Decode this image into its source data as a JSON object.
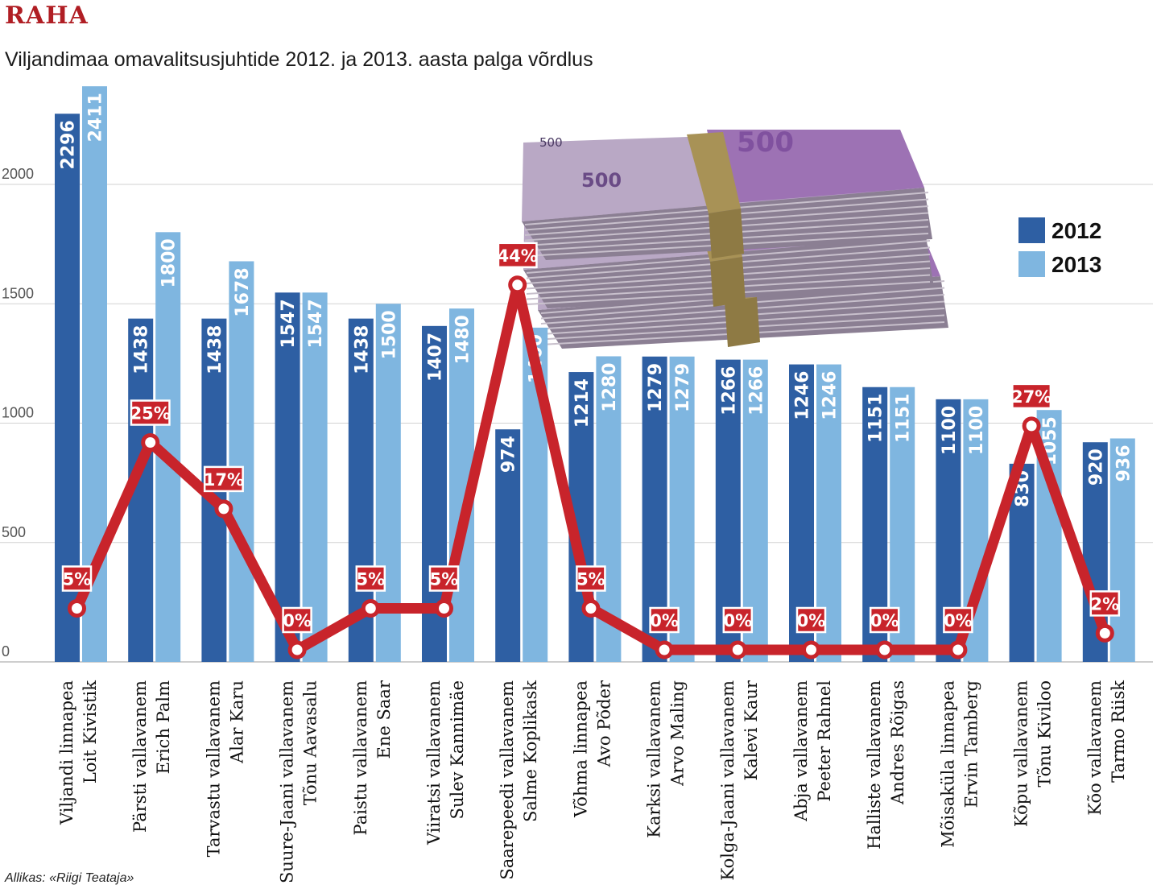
{
  "section_label": "RAHA",
  "title": "Viljandimaa omavalitsusjuhtide 2012. ja 2013. aasta palga võrdlus",
  "source": "Allikas: «Riigi Teataja»",
  "chart_data": {
    "type": "bar",
    "categories": [
      [
        "Viljandi linnapea",
        "Loit Kivistik"
      ],
      [
        "Pärsti vallavanem",
        "Erich Palm"
      ],
      [
        "Tarvastu vallavanem",
        "Alar Karu"
      ],
      [
        "Suure-Jaani vallavanem",
        "Tõnu Aavasalu"
      ],
      [
        "Paistu vallavanem",
        "Ene Saar"
      ],
      [
        "Viiratsi vallavanem",
        "Sulev Kannimäe"
      ],
      [
        "Saarepeedi vallavanem",
        "Salme Koplikask"
      ],
      [
        "Võhma linnapea",
        "Avo Põder"
      ],
      [
        "Karksi vallavanem",
        "Arvo Maling"
      ],
      [
        "Kolga-Jaani vallavanem",
        "Kalevi Kaur"
      ],
      [
        "Abja vallavanem",
        "Peeter Rahnel"
      ],
      [
        "Halliste vallavanem",
        "Andres Rõigas"
      ],
      [
        "Mõisaküla linnapea",
        "Ervin Tamberg"
      ],
      [
        "Kõpu vallavanem",
        "Tõnu Kiviloo"
      ],
      [
        "Kõo vallavanem",
        "Tarmo Riisk"
      ]
    ],
    "series": [
      {
        "name": "2012",
        "color": "#2e5fa3",
        "values": [
          2296,
          1438,
          1438,
          1547,
          1438,
          1407,
          974,
          1214,
          1279,
          1266,
          1246,
          1151,
          1100,
          830,
          920
        ]
      },
      {
        "name": "2013",
        "color": "#7fb6e0",
        "values": [
          2411,
          1800,
          1678,
          1547,
          1500,
          1480,
          1400,
          1280,
          1279,
          1266,
          1246,
          1151,
          1100,
          1055,
          936
        ]
      }
    ],
    "change": {
      "labels": [
        "5%",
        "25%",
        "17%",
        "0%",
        "5%",
        "5%",
        "44%",
        "5%",
        "0%",
        "0%",
        "0%",
        "0%",
        "0%",
        "27%",
        "2%"
      ],
      "values": [
        5,
        25,
        17,
        0,
        5,
        5,
        44,
        5,
        0,
        0,
        0,
        0,
        0,
        27,
        2
      ],
      "color": "#c8242b"
    },
    "y_ticks": [
      0,
      500,
      1000,
      1500,
      2000
    ],
    "ylim": [
      0,
      2411
    ],
    "grid": true,
    "legend_position": "top-right",
    "illustration": "euro-banknote-stacks"
  }
}
